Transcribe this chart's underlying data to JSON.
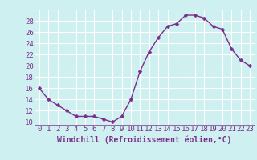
{
  "x": [
    0,
    1,
    2,
    3,
    4,
    5,
    6,
    7,
    8,
    9,
    10,
    11,
    12,
    13,
    14,
    15,
    16,
    17,
    18,
    19,
    20,
    21,
    22,
    23
  ],
  "y": [
    16,
    14,
    13,
    12,
    11,
    11,
    11,
    10.5,
    10,
    11,
    14,
    19,
    22.5,
    25,
    27,
    27.5,
    29,
    29,
    28.5,
    27,
    26.5,
    23,
    21,
    20
  ],
  "line_color": "#7b2d8b",
  "marker_color": "#7b2d8b",
  "bg_color": "#cff0f0",
  "grid_color": "#ffffff",
  "xlabel": "Windchill (Refroidissement éolien,°C)",
  "xlim": [
    -0.5,
    23.5
  ],
  "ylim": [
    9.5,
    30
  ],
  "yticks": [
    10,
    12,
    14,
    16,
    18,
    20,
    22,
    24,
    26,
    28
  ],
  "xticks": [
    0,
    1,
    2,
    3,
    4,
    5,
    6,
    7,
    8,
    9,
    10,
    11,
    12,
    13,
    14,
    15,
    16,
    17,
    18,
    19,
    20,
    21,
    22,
    23
  ],
  "tick_fontsize": 6.5,
  "xlabel_fontsize": 7,
  "line_width": 1.0,
  "marker_size": 2.5
}
